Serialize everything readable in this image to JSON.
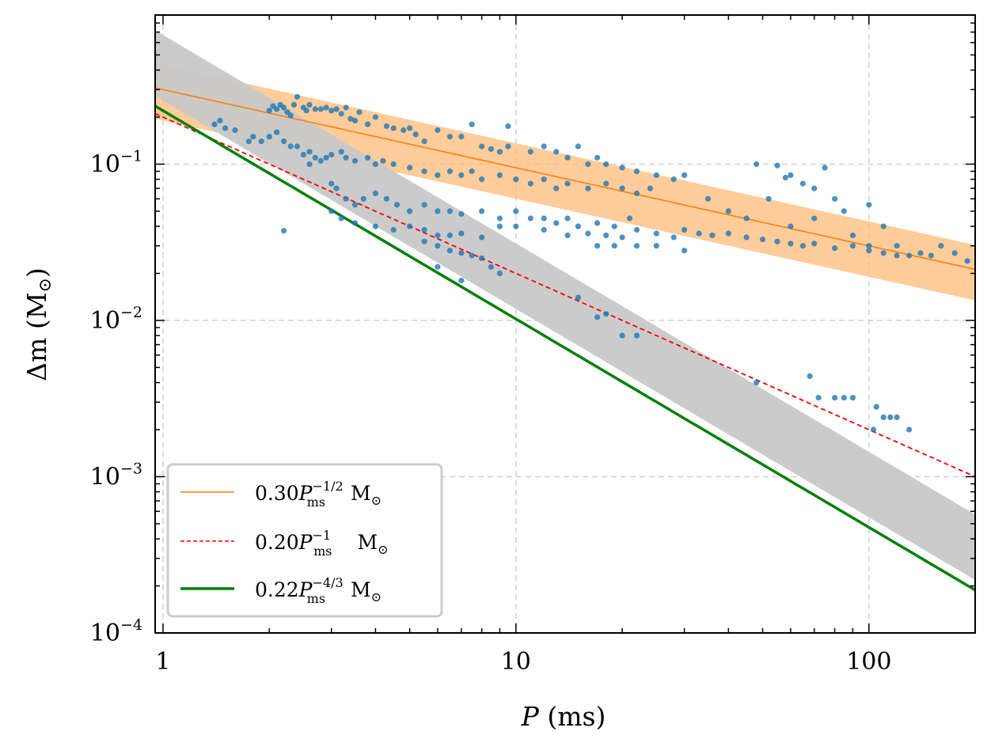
{
  "chart_data": {
    "type": "scatter",
    "title": "",
    "xlabel": {
      "symbol": "P",
      "unit": " (ms)"
    },
    "ylabel": {
      "symbol": "Δm",
      "unit": " (M",
      "unit_sub": "⊙",
      "close": ")"
    },
    "x_scale": "log",
    "y_scale": "log",
    "xlim": [
      0.95,
      200
    ],
    "ylim": [
      0.0001,
      0.9
    ],
    "grid": true,
    "x_ticks": [
      {
        "value": 1,
        "label": "1"
      },
      {
        "value": 10,
        "label": "10"
      },
      {
        "value": 100,
        "label": "100"
      }
    ],
    "y_ticks": [
      {
        "value": 0.0001,
        "base": "10",
        "exp": "−4"
      },
      {
        "value": 0.001,
        "base": "10",
        "exp": "−3"
      },
      {
        "value": 0.01,
        "base": "10",
        "exp": "−2"
      },
      {
        "value": 0.1,
        "base": "10",
        "exp": "−1"
      }
    ],
    "legend_position": "lower-left",
    "series": [
      {
        "name": "orange-fit",
        "kind": "line",
        "color": "#ff7f0e",
        "coef": 0.3,
        "exponent": -0.5,
        "band": {
          "lower": [
            0.19,
            -0.5
          ],
          "upper": [
            0.43,
            -0.5
          ],
          "color": "#ffbb78"
        },
        "legend": {
          "coef": "0.30",
          "sym": "P",
          "sub": "ms",
          "exp": "−1/2",
          "unit": "M",
          "unit_sub": "⊙"
        }
      },
      {
        "name": "red-fit",
        "kind": "dashed-line",
        "color": "#ff0000",
        "coef": 0.2,
        "exponent": -1,
        "legend": {
          "coef": "0.20",
          "sym": "P",
          "sub": "ms",
          "exp": "−1",
          "unit": "M",
          "unit_sub": "⊙"
        }
      },
      {
        "name": "green-fit",
        "kind": "line",
        "color": "#008000",
        "coef": 0.22,
        "exponent": -1.3333,
        "band": {
          "lower": [
            0.255,
            -1.3333
          ],
          "upper": [
            0.67,
            -1.3333
          ],
          "color": "#c8c8c8"
        },
        "legend": {
          "coef": "0.22",
          "sym": "P",
          "sub": "ms",
          "exp": "−4/3",
          "unit": "M",
          "unit_sub": "⊙"
        }
      }
    ],
    "scatter_color": "#1f77b4",
    "points": [
      [
        1.4,
        0.18
      ],
      [
        1.5,
        0.17
      ],
      [
        1.45,
        0.19
      ],
      [
        1.6,
        0.165
      ],
      [
        1.8,
        0.15
      ],
      [
        1.75,
        0.14
      ],
      [
        1.9,
        0.14
      ],
      [
        2.0,
        0.22
      ],
      [
        2.05,
        0.235
      ],
      [
        2.1,
        0.225
      ],
      [
        2.15,
        0.24
      ],
      [
        2.2,
        0.23
      ],
      [
        2.25,
        0.215
      ],
      [
        2.3,
        0.205
      ],
      [
        2.35,
        0.24
      ],
      [
        2.4,
        0.27
      ],
      [
        2.5,
        0.23
      ],
      [
        2.55,
        0.22
      ],
      [
        2.6,
        0.24
      ],
      [
        2.7,
        0.225
      ],
      [
        2.8,
        0.225
      ],
      [
        2.9,
        0.23
      ],
      [
        3.0,
        0.22
      ],
      [
        3.1,
        0.225
      ],
      [
        3.2,
        0.21
      ],
      [
        3.3,
        0.23
      ],
      [
        3.4,
        0.195
      ],
      [
        3.5,
        0.19
      ],
      [
        3.6,
        0.215
      ],
      [
        3.8,
        0.18
      ],
      [
        4.0,
        0.2
      ],
      [
        4.3,
        0.175
      ],
      [
        4.5,
        0.17
      ],
      [
        4.8,
        0.165
      ],
      [
        5.0,
        0.17
      ],
      [
        5.2,
        0.155
      ],
      [
        5.5,
        0.14
      ],
      [
        6.0,
        0.165
      ],
      [
        6.5,
        0.15
      ],
      [
        7.0,
        0.15
      ],
      [
        7.5,
        0.18
      ],
      [
        8.0,
        0.13
      ],
      [
        8.5,
        0.125
      ],
      [
        9.0,
        0.12
      ],
      [
        9.5,
        0.13
      ],
      [
        9.5,
        0.175
      ],
      [
        11,
        0.12
      ],
      [
        12,
        0.13
      ],
      [
        13,
        0.12
      ],
      [
        14,
        0.11
      ],
      [
        15,
        0.13
      ],
      [
        16,
        0.1
      ],
      [
        17,
        0.11
      ],
      [
        18,
        0.1
      ],
      [
        20,
        0.095
      ],
      [
        22,
        0.09
      ],
      [
        25,
        0.085
      ],
      [
        28,
        0.08
      ],
      [
        30,
        0.085
      ],
      [
        2.0,
        0.15
      ],
      [
        2.1,
        0.16
      ],
      [
        2.2,
        0.14
      ],
      [
        2.3,
        0.13
      ],
      [
        2.5,
        0.115
      ],
      [
        2.6,
        0.12
      ],
      [
        2.7,
        0.11
      ],
      [
        2.8,
        0.105
      ],
      [
        2.9,
        0.11
      ],
      [
        3.0,
        0.115
      ],
      [
        3.2,
        0.12
      ],
      [
        3.3,
        0.11
      ],
      [
        3.5,
        0.105
      ],
      [
        3.8,
        0.11
      ],
      [
        4.0,
        0.1
      ],
      [
        4.2,
        0.105
      ],
      [
        4.5,
        0.1
      ],
      [
        5.0,
        0.095
      ],
      [
        5.5,
        0.09
      ],
      [
        6.0,
        0.085
      ],
      [
        6.5,
        0.09
      ],
      [
        7.0,
        0.085
      ],
      [
        7.5,
        0.09
      ],
      [
        8.0,
        0.08
      ],
      [
        9.0,
        0.085
      ],
      [
        10,
        0.08
      ],
      [
        11,
        0.075
      ],
      [
        12,
        0.08
      ],
      [
        13,
        0.07
      ],
      [
        14,
        0.075
      ],
      [
        16,
        0.07
      ],
      [
        18,
        0.075
      ],
      [
        20,
        0.07
      ],
      [
        22,
        0.065
      ],
      [
        24,
        0.07
      ],
      [
        2.4,
        0.13
      ],
      [
        2.6,
        0.1
      ],
      [
        3.0,
        0.075
      ],
      [
        3.1,
        0.07
      ],
      [
        3.3,
        0.06
      ],
      [
        3.5,
        0.055
      ],
      [
        3.7,
        0.06
      ],
      [
        4.0,
        0.065
      ],
      [
        4.3,
        0.06
      ],
      [
        4.6,
        0.055
      ],
      [
        5.0,
        0.05
      ],
      [
        5.5,
        0.055
      ],
      [
        6.0,
        0.05
      ],
      [
        6.5,
        0.05
      ],
      [
        7.0,
        0.048
      ],
      [
        8.0,
        0.05
      ],
      [
        9.0,
        0.045
      ],
      [
        10,
        0.05
      ],
      [
        11,
        0.045
      ],
      [
        12,
        0.045
      ],
      [
        13,
        0.042
      ],
      [
        14,
        0.045
      ],
      [
        15,
        0.04
      ],
      [
        17,
        0.042
      ],
      [
        19,
        0.04
      ],
      [
        21,
        0.045
      ],
      [
        3.0,
        0.05
      ],
      [
        3.2,
        0.045
      ],
      [
        3.5,
        0.042
      ],
      [
        4.0,
        0.04
      ],
      [
        4.5,
        0.038
      ],
      [
        5.0,
        0.04
      ],
      [
        5.5,
        0.038
      ],
      [
        6.0,
        0.035
      ],
      [
        6.5,
        0.035
      ],
      [
        7.0,
        0.036
      ],
      [
        8.0,
        0.034
      ],
      [
        9.0,
        0.04
      ],
      [
        10,
        0.04
      ],
      [
        12,
        0.038
      ],
      [
        14,
        0.035
      ],
      [
        16,
        0.036
      ],
      [
        18,
        0.035
      ],
      [
        20,
        0.034
      ],
      [
        22,
        0.038
      ],
      [
        25,
        0.036
      ],
      [
        28,
        0.034
      ],
      [
        30,
        0.038
      ],
      [
        33,
        0.036
      ],
      [
        36,
        0.035
      ],
      [
        40,
        0.036
      ],
      [
        45,
        0.034
      ],
      [
        50,
        0.033
      ],
      [
        55,
        0.032
      ],
      [
        60,
        0.031
      ],
      [
        65,
        0.03
      ],
      [
        70,
        0.031
      ],
      [
        80,
        0.029
      ],
      [
        90,
        0.03
      ],
      [
        100,
        0.028
      ],
      [
        110,
        0.027
      ],
      [
        120,
        0.026
      ],
      [
        130,
        0.026
      ],
      [
        140,
        0.027
      ],
      [
        150,
        0.026
      ],
      [
        160,
        0.03
      ],
      [
        175,
        0.027
      ],
      [
        190,
        0.024
      ],
      [
        30,
        0.028
      ],
      [
        25,
        0.03
      ],
      [
        22,
        0.03
      ],
      [
        19,
        0.03
      ],
      [
        17,
        0.03
      ],
      [
        5.5,
        0.032
      ],
      [
        6.0,
        0.03
      ],
      [
        6.5,
        0.028
      ],
      [
        7.0,
        0.027
      ],
      [
        7.5,
        0.026
      ],
      [
        8.0,
        0.025
      ],
      [
        8.5,
        0.022
      ],
      [
        9.0,
        0.02
      ],
      [
        6.0,
        0.022
      ],
      [
        7.0,
        0.018
      ],
      [
        15,
        0.014
      ],
      [
        18,
        0.011
      ],
      [
        17,
        0.0105
      ],
      [
        20,
        0.008
      ],
      [
        22,
        0.008
      ],
      [
        48,
        0.004
      ],
      [
        68,
        0.0044
      ],
      [
        72,
        0.0032
      ],
      [
        80,
        0.0032
      ],
      [
        85,
        0.0032
      ],
      [
        90,
        0.0032
      ],
      [
        105,
        0.0028
      ],
      [
        110,
        0.0024
      ],
      [
        115,
        0.0024
      ],
      [
        120,
        0.0024
      ],
      [
        130,
        0.002
      ],
      [
        103,
        0.002
      ],
      [
        48,
        0.1
      ],
      [
        52,
        0.06
      ],
      [
        55,
        0.098
      ],
      [
        58,
        0.082
      ],
      [
        60,
        0.085
      ],
      [
        65,
        0.075
      ],
      [
        70,
        0.07
      ],
      [
        75,
        0.095
      ],
      [
        80,
        0.06
      ],
      [
        85,
        0.05
      ],
      [
        100,
        0.055
      ],
      [
        110,
        0.04
      ],
      [
        120,
        0.03
      ],
      [
        2.2,
        0.0375
      ],
      [
        40,
        0.05
      ],
      [
        35,
        0.06
      ],
      [
        45,
        0.045
      ],
      [
        60,
        0.04
      ],
      [
        70,
        0.045
      ],
      [
        90,
        0.035
      ],
      [
        100,
        0.03
      ]
    ]
  }
}
